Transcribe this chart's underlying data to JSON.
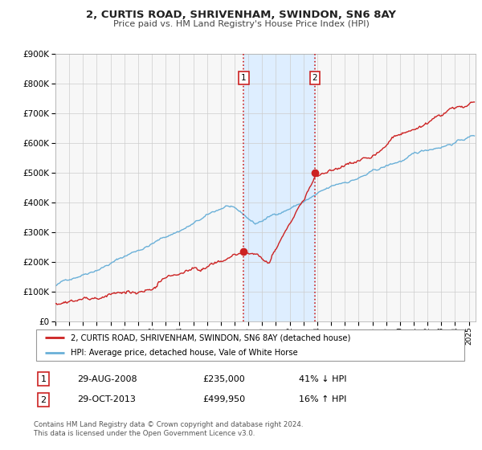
{
  "title": "2, CURTIS ROAD, SHRIVENHAM, SWINDON, SN6 8AY",
  "subtitle": "Price paid vs. HM Land Registry's House Price Index (HPI)",
  "sale1_year_dec": 2008.662,
  "sale1_price": 235000,
  "sale2_year_dec": 2013.831,
  "sale2_price": 499950,
  "legend_line1": "2, CURTIS ROAD, SHRIVENHAM, SWINDON, SN6 8AY (detached house)",
  "legend_line2": "HPI: Average price, detached house, Vale of White Horse",
  "footer1": "Contains HM Land Registry data © Crown copyright and database right 2024.",
  "footer2": "This data is licensed under the Open Government Licence v3.0.",
  "date1_str": "29-AUG-2008",
  "price1_str": "£235,000",
  "pct1_str": "41% ↓ HPI",
  "date2_str": "29-OCT-2013",
  "price2_str": "£499,950",
  "pct2_str": "16% ↑ HPI",
  "hpi_color": "#6ab0d8",
  "price_color": "#cc2222",
  "shading_color": "#deeeff",
  "grid_color": "#cccccc",
  "bg_color": "#f7f7f7",
  "ylim_max": 900000,
  "xlim_start": 1995.0,
  "xlim_end": 2025.5
}
